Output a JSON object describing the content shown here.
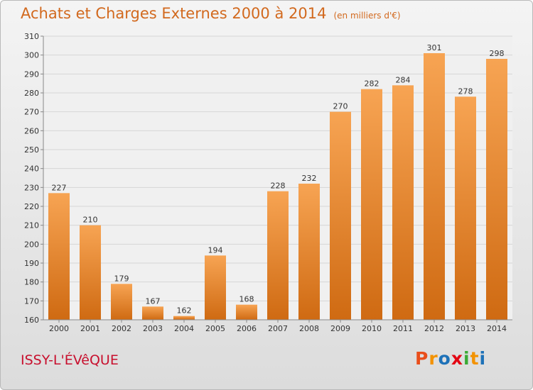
{
  "title": "Achats et Charges Externes 2000 à 2014",
  "subtitle": "(en milliers d'€)",
  "commune": "ISSY-L'ÉVêQUE",
  "logo": {
    "letters": [
      "P",
      "r",
      "o",
      "x",
      "i",
      "t",
      "i"
    ],
    "colors": [
      "#e94e1b",
      "#f39200",
      "#1d71b8",
      "#e30613",
      "#3aaa35",
      "#f39200",
      "#1d71b8"
    ]
  },
  "colors": {
    "title": "#d2691e",
    "commune": "#c8102e",
    "bar_top": "#f7a453",
    "bar_bottom": "#cf6a12"
  },
  "chart_data": {
    "type": "bar",
    "categories": [
      "2000",
      "2001",
      "2002",
      "2003",
      "2004",
      "2005",
      "2006",
      "2007",
      "2008",
      "2009",
      "2010",
      "2011",
      "2012",
      "2013",
      "2014"
    ],
    "values": [
      227,
      210,
      179,
      167,
      162,
      194,
      168,
      228,
      232,
      270,
      282,
      284,
      301,
      278,
      298
    ],
    "ylim": [
      160,
      310
    ],
    "yticks": [
      160,
      170,
      180,
      190,
      200,
      210,
      220,
      230,
      240,
      250,
      260,
      270,
      280,
      290,
      300,
      310
    ],
    "grid": true,
    "data_labels": true
  }
}
